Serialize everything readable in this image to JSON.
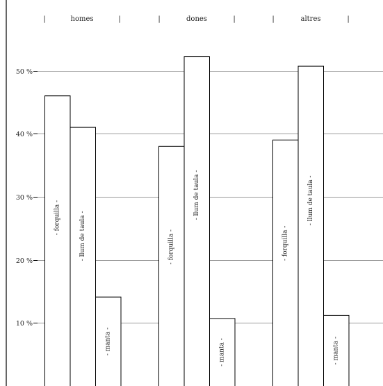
{
  "chart_data": {
    "type": "bar",
    "groups": [
      "homes",
      "dones",
      "altres"
    ],
    "group_separator": "|",
    "series": [
      {
        "name": "forquilla",
        "label": "- forquilla -",
        "values": [
          46,
          38,
          39
        ]
      },
      {
        "name": "llum de taula",
        "label": "- llum de taula -",
        "values": [
          41,
          52.2,
          50.7
        ]
      },
      {
        "name": "manta",
        "label": "- manta -",
        "values": [
          14.1,
          10.7,
          11.2
        ]
      }
    ],
    "yticks": [
      {
        "value": 10,
        "label": "10 %"
      },
      {
        "value": 20,
        "label": "20 %"
      },
      {
        "value": 30,
        "label": "30 %"
      },
      {
        "value": 40,
        "label": "40 %"
      },
      {
        "value": 50,
        "label": "50 %"
      }
    ],
    "ylim": [
      0,
      61.5
    ],
    "grid": true,
    "title": "",
    "xlabel": "",
    "ylabel": ""
  }
}
